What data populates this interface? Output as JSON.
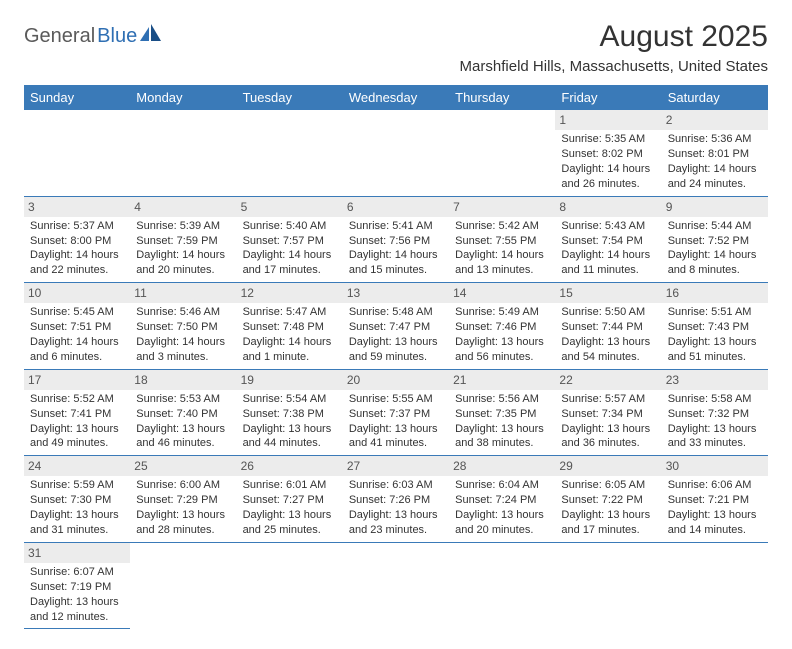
{
  "logo": {
    "text1": "General",
    "text2": "Blue"
  },
  "title": "August 2025",
  "location": "Marshfield Hills, Massachusetts, United States",
  "colors": {
    "header_bg": "#3a7ab8",
    "header_fg": "#ffffff",
    "daynum_bg": "#ececec",
    "border": "#3a7ab8",
    "logo_gray": "#5a5a5a",
    "logo_blue": "#2f6fb3"
  },
  "day_headers": [
    "Sunday",
    "Monday",
    "Tuesday",
    "Wednesday",
    "Thursday",
    "Friday",
    "Saturday"
  ],
  "weeks": [
    [
      null,
      null,
      null,
      null,
      null,
      {
        "n": "1",
        "sr": "Sunrise: 5:35 AM",
        "ss": "Sunset: 8:02 PM",
        "dl": "Daylight: 14 hours and 26 minutes."
      },
      {
        "n": "2",
        "sr": "Sunrise: 5:36 AM",
        "ss": "Sunset: 8:01 PM",
        "dl": "Daylight: 14 hours and 24 minutes."
      }
    ],
    [
      {
        "n": "3",
        "sr": "Sunrise: 5:37 AM",
        "ss": "Sunset: 8:00 PM",
        "dl": "Daylight: 14 hours and 22 minutes."
      },
      {
        "n": "4",
        "sr": "Sunrise: 5:39 AM",
        "ss": "Sunset: 7:59 PM",
        "dl": "Daylight: 14 hours and 20 minutes."
      },
      {
        "n": "5",
        "sr": "Sunrise: 5:40 AM",
        "ss": "Sunset: 7:57 PM",
        "dl": "Daylight: 14 hours and 17 minutes."
      },
      {
        "n": "6",
        "sr": "Sunrise: 5:41 AM",
        "ss": "Sunset: 7:56 PM",
        "dl": "Daylight: 14 hours and 15 minutes."
      },
      {
        "n": "7",
        "sr": "Sunrise: 5:42 AM",
        "ss": "Sunset: 7:55 PM",
        "dl": "Daylight: 14 hours and 13 minutes."
      },
      {
        "n": "8",
        "sr": "Sunrise: 5:43 AM",
        "ss": "Sunset: 7:54 PM",
        "dl": "Daylight: 14 hours and 11 minutes."
      },
      {
        "n": "9",
        "sr": "Sunrise: 5:44 AM",
        "ss": "Sunset: 7:52 PM",
        "dl": "Daylight: 14 hours and 8 minutes."
      }
    ],
    [
      {
        "n": "10",
        "sr": "Sunrise: 5:45 AM",
        "ss": "Sunset: 7:51 PM",
        "dl": "Daylight: 14 hours and 6 minutes."
      },
      {
        "n": "11",
        "sr": "Sunrise: 5:46 AM",
        "ss": "Sunset: 7:50 PM",
        "dl": "Daylight: 14 hours and 3 minutes."
      },
      {
        "n": "12",
        "sr": "Sunrise: 5:47 AM",
        "ss": "Sunset: 7:48 PM",
        "dl": "Daylight: 14 hours and 1 minute."
      },
      {
        "n": "13",
        "sr": "Sunrise: 5:48 AM",
        "ss": "Sunset: 7:47 PM",
        "dl": "Daylight: 13 hours and 59 minutes."
      },
      {
        "n": "14",
        "sr": "Sunrise: 5:49 AM",
        "ss": "Sunset: 7:46 PM",
        "dl": "Daylight: 13 hours and 56 minutes."
      },
      {
        "n": "15",
        "sr": "Sunrise: 5:50 AM",
        "ss": "Sunset: 7:44 PM",
        "dl": "Daylight: 13 hours and 54 minutes."
      },
      {
        "n": "16",
        "sr": "Sunrise: 5:51 AM",
        "ss": "Sunset: 7:43 PM",
        "dl": "Daylight: 13 hours and 51 minutes."
      }
    ],
    [
      {
        "n": "17",
        "sr": "Sunrise: 5:52 AM",
        "ss": "Sunset: 7:41 PM",
        "dl": "Daylight: 13 hours and 49 minutes."
      },
      {
        "n": "18",
        "sr": "Sunrise: 5:53 AM",
        "ss": "Sunset: 7:40 PM",
        "dl": "Daylight: 13 hours and 46 minutes."
      },
      {
        "n": "19",
        "sr": "Sunrise: 5:54 AM",
        "ss": "Sunset: 7:38 PM",
        "dl": "Daylight: 13 hours and 44 minutes."
      },
      {
        "n": "20",
        "sr": "Sunrise: 5:55 AM",
        "ss": "Sunset: 7:37 PM",
        "dl": "Daylight: 13 hours and 41 minutes."
      },
      {
        "n": "21",
        "sr": "Sunrise: 5:56 AM",
        "ss": "Sunset: 7:35 PM",
        "dl": "Daylight: 13 hours and 38 minutes."
      },
      {
        "n": "22",
        "sr": "Sunrise: 5:57 AM",
        "ss": "Sunset: 7:34 PM",
        "dl": "Daylight: 13 hours and 36 minutes."
      },
      {
        "n": "23",
        "sr": "Sunrise: 5:58 AM",
        "ss": "Sunset: 7:32 PM",
        "dl": "Daylight: 13 hours and 33 minutes."
      }
    ],
    [
      {
        "n": "24",
        "sr": "Sunrise: 5:59 AM",
        "ss": "Sunset: 7:30 PM",
        "dl": "Daylight: 13 hours and 31 minutes."
      },
      {
        "n": "25",
        "sr": "Sunrise: 6:00 AM",
        "ss": "Sunset: 7:29 PM",
        "dl": "Daylight: 13 hours and 28 minutes."
      },
      {
        "n": "26",
        "sr": "Sunrise: 6:01 AM",
        "ss": "Sunset: 7:27 PM",
        "dl": "Daylight: 13 hours and 25 minutes."
      },
      {
        "n": "27",
        "sr": "Sunrise: 6:03 AM",
        "ss": "Sunset: 7:26 PM",
        "dl": "Daylight: 13 hours and 23 minutes."
      },
      {
        "n": "28",
        "sr": "Sunrise: 6:04 AM",
        "ss": "Sunset: 7:24 PM",
        "dl": "Daylight: 13 hours and 20 minutes."
      },
      {
        "n": "29",
        "sr": "Sunrise: 6:05 AM",
        "ss": "Sunset: 7:22 PM",
        "dl": "Daylight: 13 hours and 17 minutes."
      },
      {
        "n": "30",
        "sr": "Sunrise: 6:06 AM",
        "ss": "Sunset: 7:21 PM",
        "dl": "Daylight: 13 hours and 14 minutes."
      }
    ],
    [
      {
        "n": "31",
        "sr": "Sunrise: 6:07 AM",
        "ss": "Sunset: 7:19 PM",
        "dl": "Daylight: 13 hours and 12 minutes."
      },
      null,
      null,
      null,
      null,
      null,
      null
    ]
  ]
}
